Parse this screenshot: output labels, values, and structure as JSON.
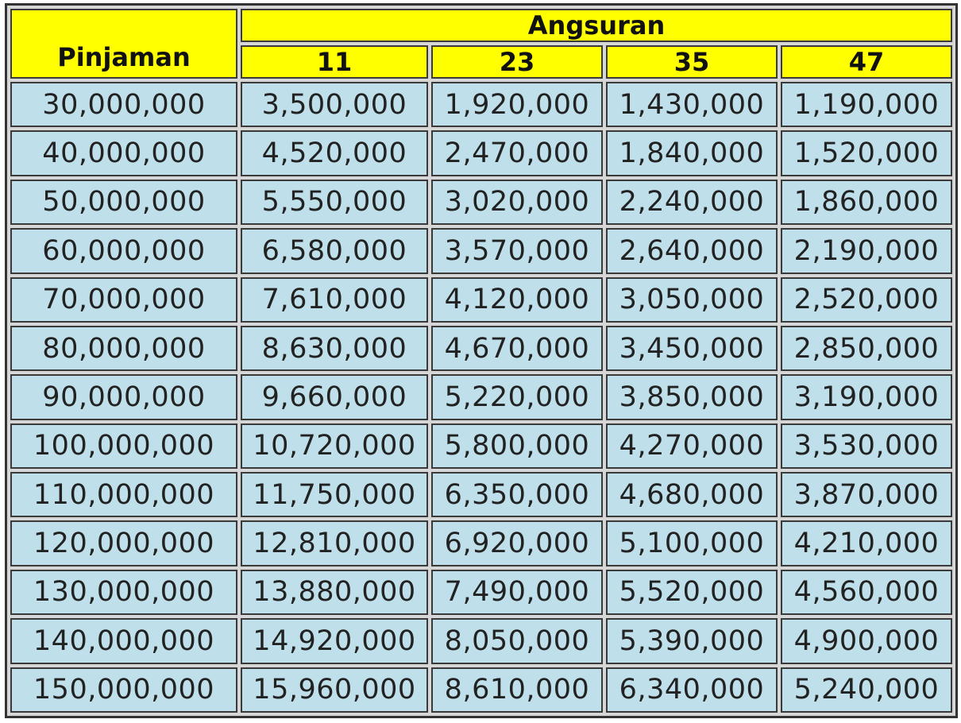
{
  "table": {
    "row_header": "Pinjaman",
    "group_header": "Angsuran",
    "columns": [
      "11",
      "23",
      "35",
      "47"
    ],
    "rows": [
      [
        "30,000,000",
        "3,500,000",
        "1,920,000",
        "1,430,000",
        "1,190,000"
      ],
      [
        "40,000,000",
        "4,520,000",
        "2,470,000",
        "1,840,000",
        "1,520,000"
      ],
      [
        "50,000,000",
        "5,550,000",
        "3,020,000",
        "2,240,000",
        "1,860,000"
      ],
      [
        "60,000,000",
        "6,580,000",
        "3,570,000",
        "2,640,000",
        "2,190,000"
      ],
      [
        "70,000,000",
        "7,610,000",
        "4,120,000",
        "3,050,000",
        "2,520,000"
      ],
      [
        "80,000,000",
        "8,630,000",
        "4,670,000",
        "3,450,000",
        "2,850,000"
      ],
      [
        "90,000,000",
        "9,660,000",
        "5,220,000",
        "3,850,000",
        "3,190,000"
      ],
      [
        "100,000,000",
        "10,720,000",
        "5,800,000",
        "4,270,000",
        "3,530,000"
      ],
      [
        "110,000,000",
        "11,750,000",
        "6,350,000",
        "4,680,000",
        "3,870,000"
      ],
      [
        "120,000,000",
        "12,810,000",
        "6,920,000",
        "5,100,000",
        "4,210,000"
      ],
      [
        "130,000,000",
        "13,880,000",
        "7,490,000",
        "5,520,000",
        "4,560,000"
      ],
      [
        "140,000,000",
        "14,920,000",
        "8,050,000",
        "5,390,000",
        "4,900,000"
      ],
      [
        "150,000,000",
        "15,960,000",
        "8,610,000",
        "6,340,000",
        "5,240,000"
      ]
    ]
  }
}
